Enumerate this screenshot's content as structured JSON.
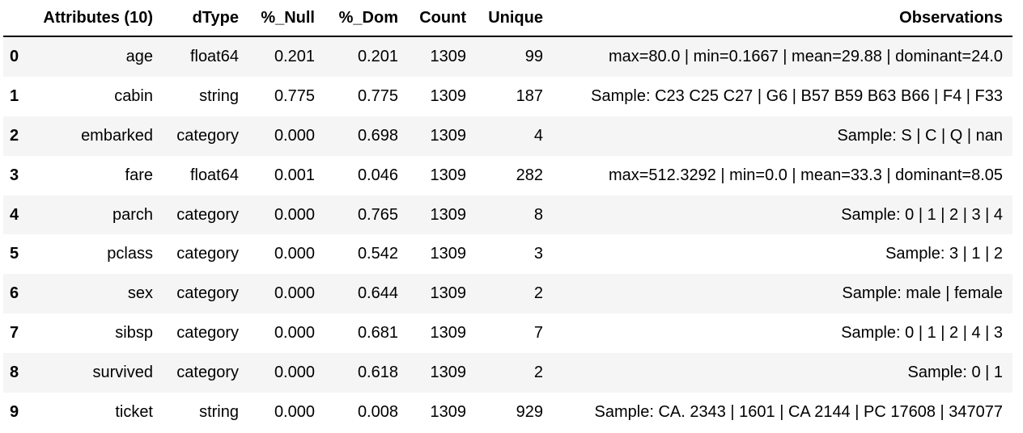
{
  "table": {
    "headers": {
      "index": "",
      "attribute": "Attributes (10)",
      "dtype": "dType",
      "null": "%_Null",
      "dom": "%_Dom",
      "count": "Count",
      "unique": "Unique",
      "observations": "Observations"
    },
    "rows": [
      {
        "index": "0",
        "attribute": "age",
        "dtype": "float64",
        "null": "0.201",
        "dom": "0.201",
        "count": "1309",
        "unique": "99",
        "observations": "max=80.0 | min=0.1667 | mean=29.88 | dominant=24.0"
      },
      {
        "index": "1",
        "attribute": "cabin",
        "dtype": "string",
        "null": "0.775",
        "dom": "0.775",
        "count": "1309",
        "unique": "187",
        "observations": "Sample: C23 C25 C27 | G6 | B57 B59 B63 B66 | F4 | F33"
      },
      {
        "index": "2",
        "attribute": "embarked",
        "dtype": "category",
        "null": "0.000",
        "dom": "0.698",
        "count": "1309",
        "unique": "4",
        "observations": "Sample: S | C | Q | nan"
      },
      {
        "index": "3",
        "attribute": "fare",
        "dtype": "float64",
        "null": "0.001",
        "dom": "0.046",
        "count": "1309",
        "unique": "282",
        "observations": "max=512.3292 | min=0.0 | mean=33.3 | dominant=8.05"
      },
      {
        "index": "4",
        "attribute": "parch",
        "dtype": "category",
        "null": "0.000",
        "dom": "0.765",
        "count": "1309",
        "unique": "8",
        "observations": "Sample: 0 | 1 | 2 | 3 | 4"
      },
      {
        "index": "5",
        "attribute": "pclass",
        "dtype": "category",
        "null": "0.000",
        "dom": "0.542",
        "count": "1309",
        "unique": "3",
        "observations": "Sample: 3 | 1 | 2"
      },
      {
        "index": "6",
        "attribute": "sex",
        "dtype": "category",
        "null": "0.000",
        "dom": "0.644",
        "count": "1309",
        "unique": "2",
        "observations": "Sample: male | female"
      },
      {
        "index": "7",
        "attribute": "sibsp",
        "dtype": "category",
        "null": "0.000",
        "dom": "0.681",
        "count": "1309",
        "unique": "7",
        "observations": "Sample: 0 | 1 | 2 | 4 | 3"
      },
      {
        "index": "8",
        "attribute": "survived",
        "dtype": "category",
        "null": "0.000",
        "dom": "0.618",
        "count": "1309",
        "unique": "2",
        "observations": "Sample: 0 | 1"
      },
      {
        "index": "9",
        "attribute": "ticket",
        "dtype": "string",
        "null": "0.000",
        "dom": "0.008",
        "count": "1309",
        "unique": "929",
        "observations": "Sample: CA. 2343 | 1601 | CA 2144 | PC 17608 | 347077"
      }
    ]
  },
  "colors": {
    "stripe": "#f5f5f5",
    "background": "#ffffff",
    "text": "#000000"
  }
}
